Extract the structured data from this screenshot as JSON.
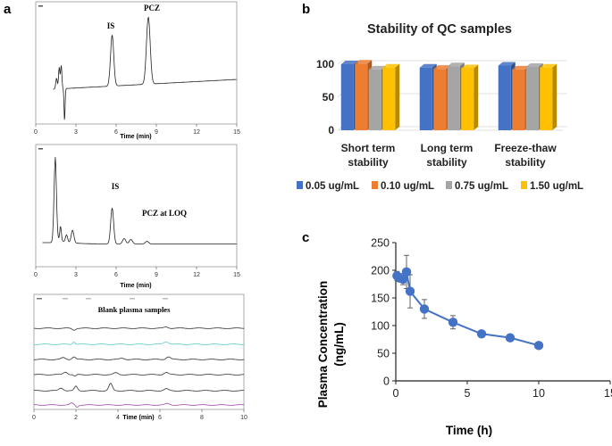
{
  "panel_labels": {
    "a": "a",
    "b": "b",
    "c": "c"
  },
  "chart_data": [
    {
      "id": "a1",
      "type": "line",
      "title": "",
      "peak_labels": [
        "IS",
        "PCZ"
      ],
      "xlabel": "Time (min)",
      "xlim": [
        0,
        15
      ],
      "x_ticks": [
        "0",
        "3",
        "6",
        "9",
        "12",
        "15"
      ],
      "peaks": [
        {
          "name": "IS",
          "x": 5.7
        },
        {
          "name": "PCZ",
          "x": 8.4
        }
      ]
    },
    {
      "id": "a2",
      "type": "line",
      "title": "",
      "peak_labels": [
        "IS",
        "PCZ at LOQ"
      ],
      "xlabel": "Time (min)",
      "xlim": [
        0,
        15
      ],
      "x_ticks": [
        "0",
        "3",
        "6",
        "9",
        "12",
        "15"
      ],
      "peaks": [
        {
          "name": "IS",
          "x": 5.7
        }
      ]
    },
    {
      "id": "a3",
      "type": "line",
      "title": "Blank plasma samples",
      "xlabel": "Time (min)",
      "xlim": [
        0,
        10
      ],
      "x_ticks": [
        "0",
        "2",
        "4",
        "6",
        "8",
        "10"
      ],
      "trace_colors": [
        "#333333",
        "#5ec8c8",
        "#333333",
        "#333333",
        "#333333",
        "#a04ca8"
      ]
    },
    {
      "id": "b",
      "type": "bar",
      "title": "Stability of QC samples",
      "categories": [
        "Short term stability",
        "Long term stability",
        "Freeze-thaw stability"
      ],
      "category_lines": [
        [
          "Short term",
          "stability"
        ],
        [
          "Long term",
          "stability"
        ],
        [
          "Freeze-thaw",
          "stability"
        ]
      ],
      "ylim": [
        0,
        100
      ],
      "y_ticks": [
        "0",
        "50",
        "100"
      ],
      "legend_position": "bottom",
      "series": [
        {
          "name": "0.05 ug/mL",
          "color": "#4472C4",
          "values": [
            100,
            95,
            98
          ]
        },
        {
          "name": "0.10 ug/mL",
          "color": "#ED7D31",
          "values": [
            101,
            93,
            92
          ]
        },
        {
          "name": "0.75 ug/mL",
          "color": "#A5A5A5",
          "values": [
            92,
            97,
            96
          ]
        },
        {
          "name": "1.50 ug/mL",
          "color": "#FFC000",
          "values": [
            95,
            94,
            95
          ]
        }
      ]
    },
    {
      "id": "c",
      "type": "scatter",
      "title": "",
      "xlabel": "Time (h)",
      "ylabel": "Plasma Concentration (ng/mL)",
      "ylabel_lines": [
        "Plasma Concentration",
        "(ng/mL)"
      ],
      "xlim": [
        0,
        15
      ],
      "ylim": [
        0,
        250
      ],
      "x_ticks": [
        "0",
        "5",
        "10",
        "15"
      ],
      "y_ticks": [
        "0",
        "50",
        "100",
        "150",
        "200",
        "250"
      ],
      "color": "#4472C4",
      "points": [
        {
          "x": 0.083,
          "y": 190,
          "err": 8
        },
        {
          "x": 0.25,
          "y": 186,
          "err": 6
        },
        {
          "x": 0.5,
          "y": 184,
          "err": 10
        },
        {
          "x": 0.75,
          "y": 197,
          "err": 30
        },
        {
          "x": 1,
          "y": 162,
          "err": 30
        },
        {
          "x": 2,
          "y": 130,
          "err": 17
        },
        {
          "x": 4,
          "y": 106,
          "err": 12
        },
        {
          "x": 6,
          "y": 85,
          "err": 4
        },
        {
          "x": 8,
          "y": 78,
          "err": 3
        },
        {
          "x": 10,
          "y": 64,
          "err": 3
        }
      ]
    }
  ]
}
